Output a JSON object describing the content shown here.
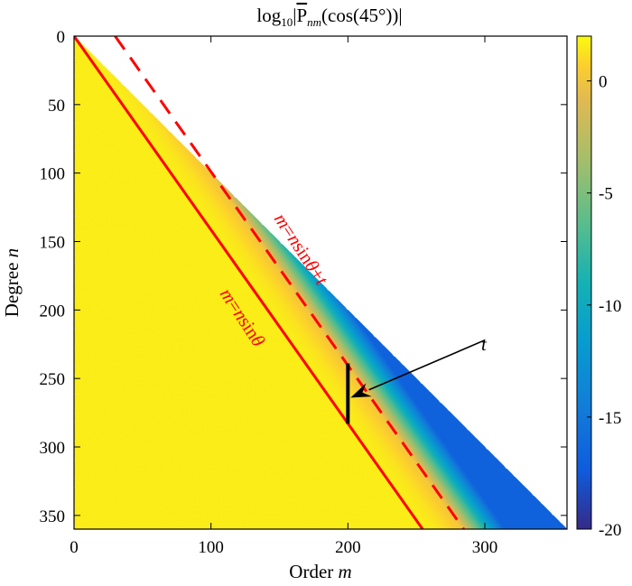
{
  "chart_data": {
    "type": "heatmap",
    "title": {
      "main": "log",
      "sub_base": "10",
      "bar_open": "|",
      "P": "P",
      "sub_nm": "nm",
      "arg": "(cos(45°))|"
    },
    "xlabel": {
      "text": "Order ",
      "var": "m"
    },
    "ylabel": {
      "text": "Degree ",
      "var": "n"
    },
    "xlim": [
      0,
      360
    ],
    "ylim": [
      0,
      360
    ],
    "y_reversed": true,
    "xticks": [
      0,
      100,
      200,
      300
    ],
    "yticks": [
      0,
      50,
      100,
      150,
      200,
      250,
      300,
      350
    ],
    "colorbar": {
      "colormap": "parula",
      "clim": [
        -20,
        2
      ],
      "ticks": [
        0,
        -5,
        -10,
        -15,
        -20
      ],
      "placement": "right"
    },
    "domain": "lower triangle m <= n, masked above the diagonal m = n",
    "theta_deg": 45,
    "t": 30,
    "lines": [
      {
        "name": "m=nsinθ",
        "equation": "m = n sin θ",
        "style": "solid",
        "color": "#ff0000"
      },
      {
        "name": "m=nsinθ+t",
        "equation": "m = n sin θ + t",
        "style": "dashed",
        "color": "#ff0000"
      }
    ],
    "annotations": [
      {
        "text_m": "m",
        "text_eq": "=",
        "text_n": "n",
        "text_sin": "sin",
        "text_theta": "θ",
        "text_plus": "+",
        "text_t": "t"
      },
      {
        "text_m": "m",
        "text_eq": "=",
        "text_n": "n",
        "text_sin": "sin",
        "text_theta": "θ"
      },
      {
        "text": "t"
      }
    ],
    "t_marker": {
      "m": 200,
      "n_from": 239,
      "n_to": 283
    },
    "t_arrow": {
      "from": [
        300,
        222
      ],
      "to": [
        202,
        264
      ]
    }
  }
}
